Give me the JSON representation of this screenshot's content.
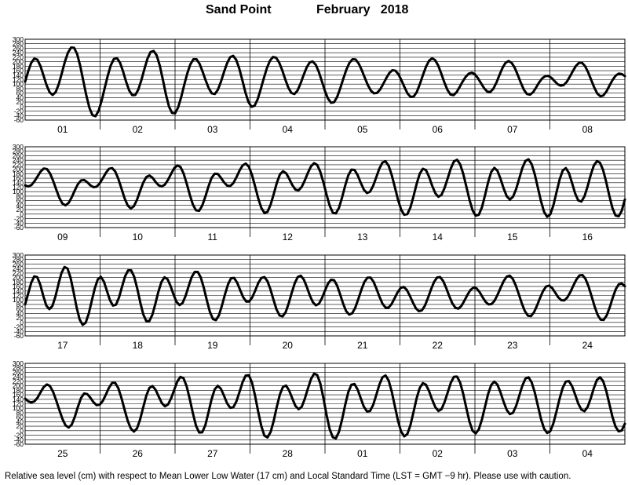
{
  "header": {
    "station": "Sand Point",
    "month_year": "February   2018"
  },
  "footnote": "Relative sea level (cm) with respect to Mean Lower Low Water (17 cm) and Local Standard Time (LST = GMT −9 hr). Please use with caution.",
  "chart_data": {
    "type": "line",
    "ylim": [
      -60,
      300
    ],
    "y_ticks": [
      300,
      280,
      260,
      240,
      220,
      200,
      180,
      160,
      140,
      120,
      100,
      80,
      60,
      40,
      20,
      0,
      -20,
      -40,
      -60
    ],
    "grid": true,
    "line_color": "#000000",
    "panels": [
      {
        "day_labels": [
          "01",
          "02",
          "03",
          "04",
          "05",
          "06",
          "07",
          "08"
        ],
        "hourly": [
          111,
          157,
          195,
          214,
          209,
          181,
          139,
          96,
          64,
          52,
          65,
          100,
          149,
          200,
          240,
          263,
          262,
          234,
          182,
          116,
          50,
          -5,
          -38,
          -43,
          -19,
          26,
          82,
          137,
          184,
          212,
          216,
          196,
          157,
          111,
          72,
          51,
          52,
          76,
          118,
          168,
          214,
          243,
          248,
          228,
          183,
          121,
          55,
          1,
          -28,
          -30,
          -4,
          42,
          97,
          148,
          188,
          211,
          211,
          191,
          156,
          117,
          82,
          59,
          56,
          75,
          111,
          154,
          193,
          220,
          226,
          208,
          169,
          117,
          63,
          20,
          -1,
          4,
          33,
          78,
          126,
          171,
          204,
          221,
          218,
          197,
          163,
          122,
          85,
          61,
          56,
          71,
          102,
          140,
          174,
          197,
          201,
          186,
          154,
          112,
          69,
          35,
          17,
          20,
          44,
          82,
          125,
          165,
          195,
          211,
          210,
          192,
          163,
          129,
          96,
          71,
          59,
          61,
          76,
          100,
          126,
          149,
          162,
          160,
          144,
          117,
          86,
          58,
          43,
          45,
          65,
          100,
          140,
          177,
          204,
          215,
          207,
          183,
          147,
          108,
          75,
          54,
          51,
          64,
          87,
          112,
          133,
          147,
          151,
          144,
          126,
          104,
          82,
          67,
          65,
          79,
          106,
          140,
          172,
          195,
          203,
          195,
          173,
          141,
          106,
          75,
          56,
          53,
          64,
          85,
          108,
          126,
          136,
          137,
          128,
          114,
          100,
          93,
          96,
          110,
          133,
          158,
          181,
          195,
          195,
          180,
          153,
          119,
          85,
          58,
          46,
          50,
          68,
          94,
          119,
          138,
          147,
          145,
          136
        ]
      },
      {
        "day_labels": [
          "09",
          "10",
          "11",
          "12",
          "13",
          "14",
          "15",
          "16"
        ],
        "hourly": [
          128,
          123,
          129,
          146,
          168,
          190,
          203,
          201,
          182,
          149,
          110,
          73,
          47,
          39,
          50,
          75,
          106,
          134,
          150,
          152,
          142,
          128,
          120,
          122,
          137,
          160,
          184,
          202,
          205,
          190,
          157,
          114,
          71,
          39,
          25,
          35,
          64,
          103,
          140,
          165,
          172,
          162,
          143,
          128,
          123,
          132,
          153,
          180,
          205,
          217,
          210,
          181,
          136,
          86,
          42,
          17,
          15,
          38,
          78,
          123,
          161,
          180,
          179,
          162,
          142,
          127,
          125,
          138,
          164,
          194,
          217,
          225,
          211,
          175,
          124,
          71,
          28,
          5,
          10,
          42,
          89,
          139,
          177,
          191,
          182,
          157,
          129,
          109,
          106,
          121,
          150,
          184,
          213,
          227,
          219,
          188,
          141,
          87,
          38,
          7,
          3,
          28,
          74,
          127,
          173,
          198,
          197,
          174,
          140,
          109,
          94,
          100,
          126,
          164,
          203,
          230,
          235,
          215,
          173,
          119,
          64,
          20,
          -3,
          0,
          30,
          80,
          135,
          180,
          202,
          196,
          166,
          126,
          93,
          77,
          86,
          117,
          160,
          204,
          235,
          242,
          222,
          179,
          122,
          64,
          17,
          -7,
          -3,
          30,
          84,
          142,
          188,
          206,
          193,
          157,
          114,
          79,
          65,
          77,
          111,
          158,
          205,
          237,
          244,
          223,
          178,
          118,
          58,
          10,
          -12,
          -1,
          39,
          97,
          154,
          194,
          205,
          183,
          139,
          92,
          61,
          56,
          79,
          123,
          174,
          216,
          236,
          229,
          196,
          143,
          82,
          27,
          -6,
          -10,
          15,
          65
        ]
      },
      {
        "day_labels": [
          "17",
          "18",
          "19",
          "20",
          "21",
          "22",
          "23",
          "24"
        ],
        "hourly": [
          80,
          128,
          176,
          205,
          202,
          168,
          118,
          75,
          59,
          73,
          115,
          170,
          220,
          247,
          240,
          199,
          135,
          67,
          13,
          -11,
          -1,
          39,
          96,
          152,
          192,
          203,
          182,
          141,
          99,
          75,
          79,
          111,
          159,
          205,
          232,
          232,
          204,
          152,
          90,
          36,
          6,
          6,
          34,
          83,
          137,
          180,
          201,
          193,
          163,
          124,
          91,
          77,
          87,
          119,
          162,
          202,
          225,
          225,
          200,
          154,
          98,
          47,
          15,
          10,
          32,
          76,
          126,
          170,
          197,
          198,
          177,
          144,
          112,
          93,
          93,
          112,
          143,
          176,
          198,
          202,
          184,
          147,
          101,
          58,
          31,
          27,
          45,
          84,
          131,
          174,
          202,
          208,
          191,
          158,
          120,
          90,
          76,
          83,
          108,
          142,
          173,
          190,
          188,
          164,
          125,
          83,
          50,
          35,
          41,
          66,
          104,
          145,
          180,
          199,
          200,
          182,
          150,
          114,
          83,
          66,
          66,
          82,
          108,
          135,
          154,
          158,
          145,
          119,
          89,
          63,
          50,
          54,
          75,
          109,
          147,
          180,
          200,
          202,
          185,
          154,
          118,
          86,
          66,
          61,
          73,
          96,
          122,
          144,
          155,
          152,
          136,
          113,
          92,
          80,
          82,
          97,
          124,
          155,
          184,
          204,
          208,
          194,
          164,
          125,
          84,
          50,
          30,
          28,
          45,
          75,
          109,
          140,
          160,
          164,
          153,
          133,
          112,
          99,
          98,
          111,
          135,
          164,
          191,
          209,
          211,
          194,
          161,
          117,
          72,
          34,
          12,
          11,
          31,
          67,
          110,
          148,
          170,
          173,
          161
        ]
      },
      {
        "day_labels": [
          "25",
          "26",
          "27",
          "28",
          "01",
          "02",
          "03",
          "04"
        ],
        "hourly": [
          143,
          131,
          126,
          131,
          147,
          172,
          195,
          206,
          199,
          173,
          135,
          93,
          53,
          24,
          14,
          27,
          62,
          107,
          146,
          166,
          163,
          147,
          127,
          114,
          116,
          133,
          161,
          192,
          213,
          213,
          189,
          146,
          94,
          45,
          10,
          -4,
          10,
          50,
          104,
          156,
          191,
          199,
          182,
          152,
          123,
          109,
          117,
          145,
          183,
          220,
          240,
          233,
          197,
          140,
          77,
          22,
          -8,
          -7,
          25,
          81,
          140,
          184,
          200,
          187,
          156,
          122,
          102,
          104,
          131,
          173,
          217,
          246,
          247,
          215,
          156,
          85,
          21,
          -22,
          -30,
          -6,
          44,
          107,
          162,
          196,
          201,
          178,
          143,
          110,
          96,
          106,
          142,
          188,
          230,
          254,
          248,
          210,
          145,
          71,
          7,
          -29,
          -34,
          -5,
          50,
          115,
          172,
          205,
          208,
          184,
          145,
          107,
          86,
          88,
          115,
          159,
          205,
          238,
          246,
          223,
          173,
          108,
          44,
          -4,
          -25,
          -15,
          25,
          84,
          145,
          191,
          212,
          205,
          176,
          138,
          105,
          88,
          96,
          128,
          171,
          214,
          240,
          241,
          214,
          163,
          100,
          40,
          0,
          -12,
          6,
          50,
          107,
          164,
          204,
          219,
          205,
          170,
          128,
          92,
          74,
          80,
          110,
          155,
          200,
          232,
          238,
          216,
          171,
          112,
          53,
          9,
          -10,
          -2,
          33,
          86,
          143,
          191,
          219,
          221,
          199,
          161,
          121,
          94,
          87,
          105,
          143,
          189,
          226,
          238,
          221,
          178,
          120,
          62,
          18,
          -3,
          1,
          31
        ]
      }
    ]
  }
}
